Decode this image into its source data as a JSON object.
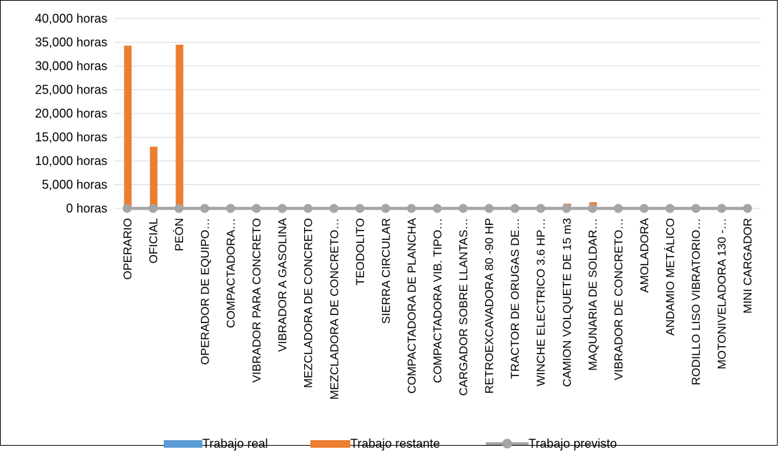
{
  "chart_data": {
    "type": "bar",
    "title": "",
    "xlabel": "",
    "ylabel": "",
    "ylim": [
      0,
      40000
    ],
    "yticks": [
      0,
      5000,
      10000,
      15000,
      20000,
      25000,
      30000,
      35000,
      40000
    ],
    "ytick_labels": [
      "0 horas",
      "5,000 horas",
      "10,000 horas",
      "15,000 horas",
      "20,000 horas",
      "25,000 horas",
      "30,000 horas",
      "35,000 horas",
      "40,000 horas"
    ],
    "grid": true,
    "legend_position": "bottom",
    "categories": [
      "OPERARIO",
      "OFICIAL",
      "PEÓN",
      "OPERADOR DE EQUIPO…",
      "COMPACTADORA…",
      "VIBRADOR PARA CONCRETO",
      "VIBRADOR A GASOLINA",
      "MEZCLADORA DE CONCRETO",
      "MEZCLADORA DE CONCRETO…",
      "TEODOLITO",
      "SIERRA CIRCULAR",
      "COMPACTADORA DE PLANCHA",
      "COMPACTADORA VIB. TIPO…",
      "CARGADOR SOBRE LLANTAS…",
      "RETROEXCAVADORA 80 -90 HP",
      "TRACTOR DE ORUGAS DE…",
      "WINCHE ELECTRICO 3.6 HP…",
      "CAMION VOLQUETE DE 15 m3",
      "MAQUNARIA DE SOLDAR…",
      "VIBRADOR DE CONCRETO…",
      "AMOLADORA",
      "ANDAMIO METÁLICO",
      "RODILLO LISO VIBRATORIO…",
      "MOTONIVELADORA 130 -…",
      "MINI CARGADOR"
    ],
    "series": [
      {
        "name": "Trabajo real",
        "type": "bar",
        "color": "#5B9BD5",
        "values": [
          0,
          0,
          0,
          0,
          0,
          0,
          0,
          0,
          0,
          0,
          0,
          0,
          0,
          0,
          0,
          0,
          0,
          0,
          0,
          0,
          0,
          0,
          0,
          0,
          0
        ]
      },
      {
        "name": "Trabajo restante",
        "type": "bar",
        "color": "#ED7D31",
        "values": [
          34300,
          13000,
          34500,
          100,
          100,
          100,
          100,
          100,
          100,
          100,
          100,
          100,
          100,
          100,
          100,
          100,
          100,
          1000,
          1300,
          100,
          100,
          100,
          100,
          100,
          100
        ]
      },
      {
        "name": "Trabajo previsto",
        "type": "line",
        "color": "#A5A5A5",
        "values": [
          0,
          0,
          0,
          0,
          0,
          0,
          0,
          0,
          0,
          0,
          0,
          0,
          0,
          0,
          0,
          0,
          0,
          0,
          0,
          0,
          0,
          0,
          0,
          0,
          0
        ]
      }
    ]
  }
}
